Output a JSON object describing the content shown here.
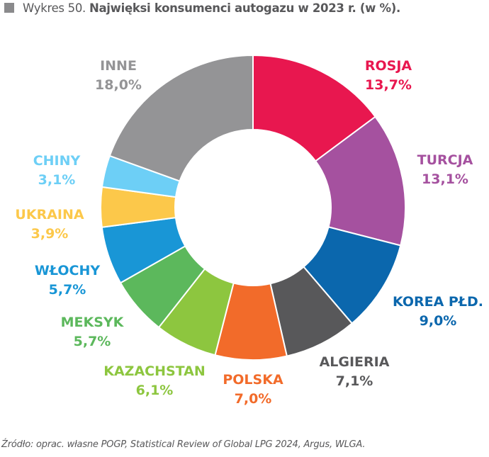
{
  "title": {
    "prefix": "Wykres 50.",
    "text": "Najwięksi konsumenci autogazu w 2023 r. (w %)."
  },
  "source": "Źródło: oprac. własne POGP, Statistical Review of Global LPG 2024, Argus, WLGA.",
  "chart_data": {
    "type": "pie",
    "variant": "donut",
    "title": "Najwięksi konsumenci autogazu w 2023 r. (w %).",
    "start": "top, clockwise",
    "slices": [
      {
        "label": "ROSJA",
        "value": 13.7,
        "value_text": "13,7%",
        "color": "#e8174f"
      },
      {
        "label": "TURCJA",
        "value": 13.1,
        "value_text": "13,1%",
        "color": "#a5519f"
      },
      {
        "label": "KOREA PŁD.",
        "value": 9.0,
        "value_text": "9,0%",
        "color": "#0b67ad"
      },
      {
        "label": "ALGIERIA",
        "value": 7.1,
        "value_text": "7,1%",
        "color": "#58585a"
      },
      {
        "label": "POLSKA",
        "value": 7.0,
        "value_text": "7,0%",
        "color": "#f26b2a"
      },
      {
        "label": "KAZACHSTAN",
        "value": 6.1,
        "value_text": "6,1%",
        "color": "#8dc63f"
      },
      {
        "label": "MEKSYK",
        "value": 5.7,
        "value_text": "5,7%",
        "color": "#5cb85c"
      },
      {
        "label": "WŁOCHY",
        "value": 5.7,
        "value_text": "5,7%",
        "color": "#1996d6"
      },
      {
        "label": "UKRAINA",
        "value": 3.9,
        "value_text": "3,9%",
        "color": "#fcc84a"
      },
      {
        "label": "CHINY",
        "value": 3.1,
        "value_text": "3,1%",
        "color": "#6dcff6"
      },
      {
        "label": "INNE",
        "value": 18.0,
        "value_text": "18,0%",
        "color": "#949496"
      }
    ]
  }
}
